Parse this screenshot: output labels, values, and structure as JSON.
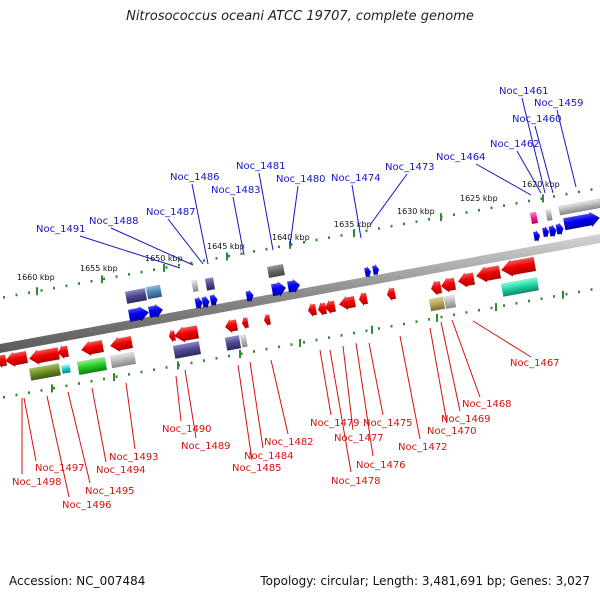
{
  "title": "Nitrosococcus oceani ATCC 19707, complete genome",
  "footer": {
    "accession": "Accession: NC_007484",
    "summary": "Topology: circular; Length: 3,481,691 bp; Genes: 3,027"
  },
  "colors": {
    "forward_label": "#1515c8",
    "reverse_label": "#d81010",
    "backbone": "#8c8c8c",
    "ruler_tick": "#2e8b2e"
  },
  "ruler_labels": [
    "1620 kbp",
    "1625 kbp",
    "1630 kbp",
    "1635 kbp",
    "1640 kbp",
    "1645 kbp",
    "1650 kbp",
    "1655 kbp",
    "1660 kbp"
  ],
  "forward_labels": [
    "Noc_1459",
    "Noc_1460",
    "Noc_1461",
    "Noc_1462",
    "Noc_1464",
    "Noc_1473",
    "Noc_1474",
    "Noc_1480",
    "Noc_1481",
    "Noc_1483",
    "Noc_1486",
    "Noc_1487",
    "Noc_1488",
    "Noc_1491"
  ],
  "reverse_labels": [
    "Noc_1467",
    "Noc_1468",
    "Noc_1469",
    "Noc_1470",
    "Noc_1472",
    "Noc_1475",
    "Noc_1476",
    "Noc_1477",
    "Noc_1478",
    "Noc_1479",
    "Noc_1482",
    "Noc_1484",
    "Noc_1485",
    "Noc_1489",
    "Noc_1490",
    "Noc_1493",
    "Noc_1494",
    "Noc_1495",
    "Noc_1496",
    "Noc_1497",
    "Noc_1498"
  ]
}
